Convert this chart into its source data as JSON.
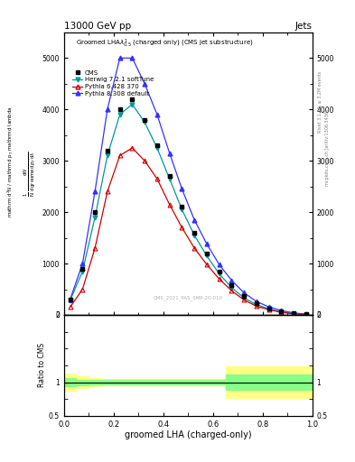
{
  "title_top": "13000 GeV pp",
  "title_right": "Jets",
  "xlabel": "groomed LHA (charged-only)",
  "ylabel_ratio": "Ratio to CMS",
  "watermark": "CMS_2021_PAS_SMP-20-010",
  "rivet_text": "Rivet 3.1.10, ≥ 3.2M events",
  "mcplots_text": "mcplots.cern.ch [arXiv:1306.3436]",
  "x_data": [
    0.025,
    0.075,
    0.125,
    0.175,
    0.225,
    0.275,
    0.325,
    0.375,
    0.425,
    0.475,
    0.525,
    0.575,
    0.625,
    0.675,
    0.725,
    0.775,
    0.825,
    0.875,
    0.925,
    0.975
  ],
  "cms_y": [
    300,
    900,
    2000,
    3200,
    4000,
    4200,
    3800,
    3300,
    2700,
    2100,
    1600,
    1200,
    850,
    580,
    370,
    220,
    130,
    70,
    30,
    10
  ],
  "herwig_y": [
    280,
    850,
    1900,
    3100,
    3900,
    4100,
    3750,
    3250,
    2650,
    2050,
    1550,
    1150,
    800,
    530,
    330,
    200,
    115,
    60,
    25,
    8
  ],
  "pythia6_y": [
    150,
    500,
    1300,
    2400,
    3100,
    3250,
    3000,
    2650,
    2150,
    1700,
    1300,
    980,
    700,
    470,
    290,
    170,
    100,
    50,
    20,
    6
  ],
  "pythia8_y": [
    300,
    1000,
    2400,
    4000,
    5000,
    5000,
    4500,
    3900,
    3150,
    2450,
    1850,
    1380,
    980,
    670,
    430,
    260,
    155,
    85,
    38,
    12
  ],
  "cms_color": "#000000",
  "herwig_color": "#009999",
  "pythia6_color": "#cc0000",
  "pythia8_color": "#3333ff",
  "ylim_main": [
    0,
    5500
  ],
  "ylim_ratio": [
    0.5,
    2.0
  ],
  "ratio_band_x": [
    0.0,
    0.05,
    0.1,
    0.15,
    0.2,
    0.25,
    0.3,
    0.35,
    0.4,
    0.45,
    0.5,
    0.55,
    0.6,
    0.65,
    0.7,
    0.75,
    0.8,
    0.85,
    0.9,
    0.95,
    1.0
  ],
  "ratio_green_lo": [
    0.94,
    0.96,
    0.97,
    0.97,
    0.97,
    0.97,
    0.97,
    0.97,
    0.97,
    0.97,
    0.97,
    0.97,
    0.97,
    0.88,
    0.88,
    0.88,
    0.88,
    0.88,
    0.88,
    0.88,
    0.88
  ],
  "ratio_green_hi": [
    1.06,
    1.04,
    1.03,
    1.03,
    1.03,
    1.03,
    1.03,
    1.03,
    1.03,
    1.03,
    1.03,
    1.03,
    1.03,
    1.12,
    1.12,
    1.12,
    1.12,
    1.12,
    1.12,
    1.12,
    1.12
  ],
  "ratio_yellow_lo": [
    0.87,
    0.91,
    0.94,
    0.95,
    0.95,
    0.95,
    0.95,
    0.95,
    0.95,
    0.95,
    0.95,
    0.95,
    0.95,
    0.77,
    0.77,
    0.77,
    0.77,
    0.77,
    0.77,
    0.77,
    0.77
  ],
  "ratio_yellow_hi": [
    1.13,
    1.09,
    1.06,
    1.05,
    1.05,
    1.05,
    1.05,
    1.05,
    1.05,
    1.05,
    1.05,
    1.05,
    1.05,
    1.23,
    1.23,
    1.23,
    1.23,
    1.23,
    1.23,
    1.23,
    1.23
  ],
  "background_color": "#ffffff",
  "fig_width": 3.93,
  "fig_height": 5.12
}
